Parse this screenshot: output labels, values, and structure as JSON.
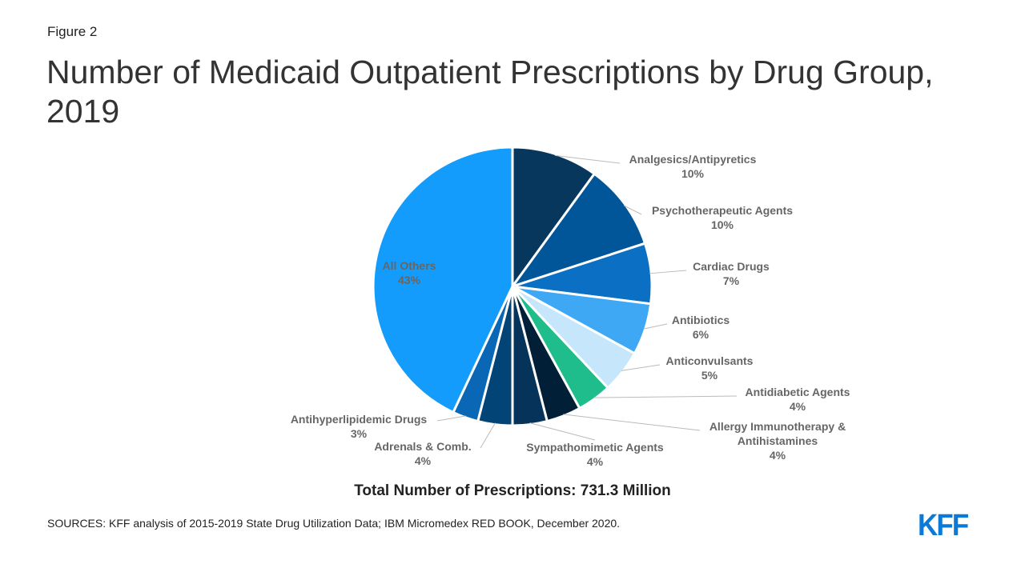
{
  "figure_label": "Figure 2",
  "title": "Number of Medicaid Outpatient Prescriptions by Drug Group, 2019",
  "total_label": "Total Number of Prescriptions: 731.3 Million",
  "sources": "SOURCES: KFF analysis of 2015-2019 State Drug Utilization Data; IBM Micromedex RED BOOK, December 2020.",
  "logo": "KFF",
  "chart_data": {
    "type": "pie",
    "unit": "%",
    "slices": [
      {
        "label": "Analgesics/Antipyretics",
        "lines": [
          "Analgesics/Antipyretics"
        ],
        "value": 10,
        "value_label": "10%",
        "color": "#08375e"
      },
      {
        "label": "Psychotherapeutic Agents",
        "lines": [
          "Psychotherapeutic Agents"
        ],
        "value": 10,
        "value_label": "10%",
        "color": "#01569a"
      },
      {
        "label": "Cardiac Drugs",
        "lines": [
          "Cardiac Drugs"
        ],
        "value": 7,
        "value_label": "7%",
        "color": "#0b70c4"
      },
      {
        "label": "Antibiotics",
        "lines": [
          "Antibiotics"
        ],
        "value": 6,
        "value_label": "6%",
        "color": "#3ea8f5"
      },
      {
        "label": "Anticonvulsants",
        "lines": [
          "Anticonvulsants"
        ],
        "value": 5,
        "value_label": "5%",
        "color": "#c6e6fb"
      },
      {
        "label": "Antidiabetic Agents",
        "lines": [
          "Antidiabetic Agents"
        ],
        "value": 4,
        "value_label": "4%",
        "color": "#1fbd8b"
      },
      {
        "label": "Allergy Immunotherapy & Antihistamines",
        "lines": [
          "Allergy Immunotherapy &",
          "Antihistamines"
        ],
        "value": 4,
        "value_label": "4%",
        "color": "#021f38"
      },
      {
        "label": "Sympathomimetic Agents",
        "lines": [
          "Sympathomimetic Agents"
        ],
        "value": 4,
        "value_label": "4%",
        "color": "#05335a"
      },
      {
        "label": "Adrenals & Comb.",
        "lines": [
          "Adrenals & Comb."
        ],
        "value": 4,
        "value_label": "4%",
        "color": "#034477"
      },
      {
        "label": "Antihyperlipidemic Drugs",
        "lines": [
          "Antihyperlipidemic Drugs"
        ],
        "value": 3,
        "value_label": "3%",
        "color": "#0a67b5"
      },
      {
        "label": "All Others",
        "lines": [
          "All Others"
        ],
        "value": 43,
        "value_label": "43%",
        "color": "#139cfb"
      }
    ]
  }
}
